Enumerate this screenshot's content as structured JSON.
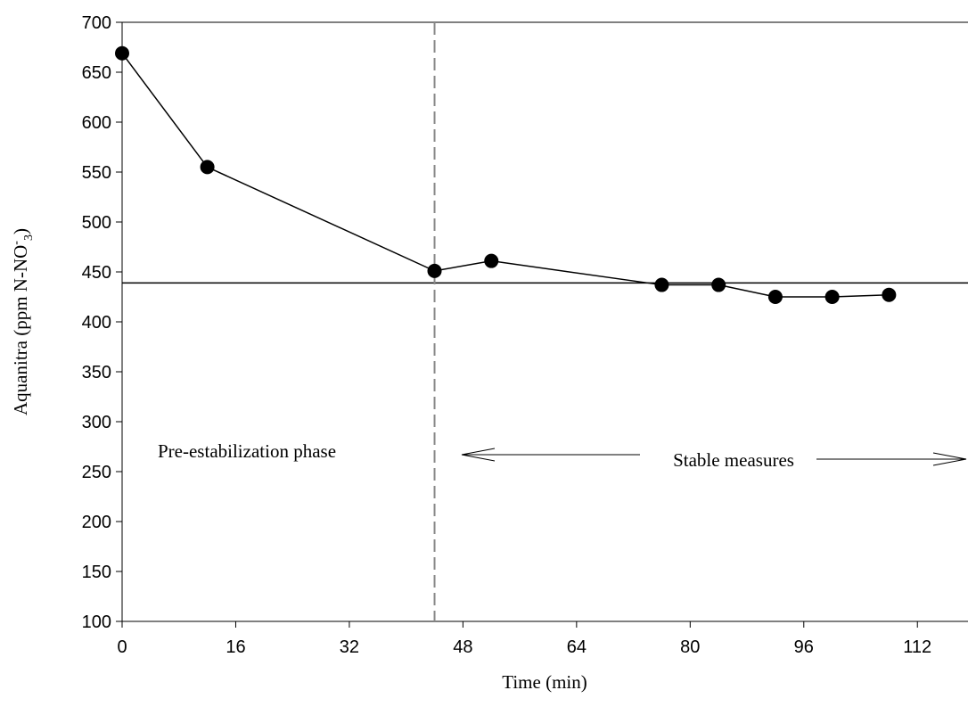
{
  "chart_data": {
    "type": "line",
    "xlabel": "Time (min)",
    "ylabel": {
      "text": "Aquanitra (ppm N-NO",
      "superscript": "-",
      "subscript": "3",
      "end": ")"
    },
    "x": [
      0,
      12,
      44,
      52,
      76,
      84,
      92,
      100,
      108
    ],
    "series": [
      {
        "color": "#000000",
        "values": [
          669,
          555,
          451,
          461,
          437,
          437,
          425,
          425,
          427
        ]
      }
    ],
    "xlim": [
      0,
      119
    ],
    "ylim": [
      100,
      700
    ],
    "xticks": [
      0,
      16,
      32,
      48,
      64,
      80,
      96,
      112
    ],
    "yticks": [
      100,
      150,
      200,
      250,
      300,
      350,
      400,
      450,
      500,
      550,
      600,
      650,
      700
    ],
    "reference_line_y": 439,
    "reference_line_x": 44,
    "annotations": [
      "Pre-estabilization phase",
      "Stable measures"
    ]
  }
}
